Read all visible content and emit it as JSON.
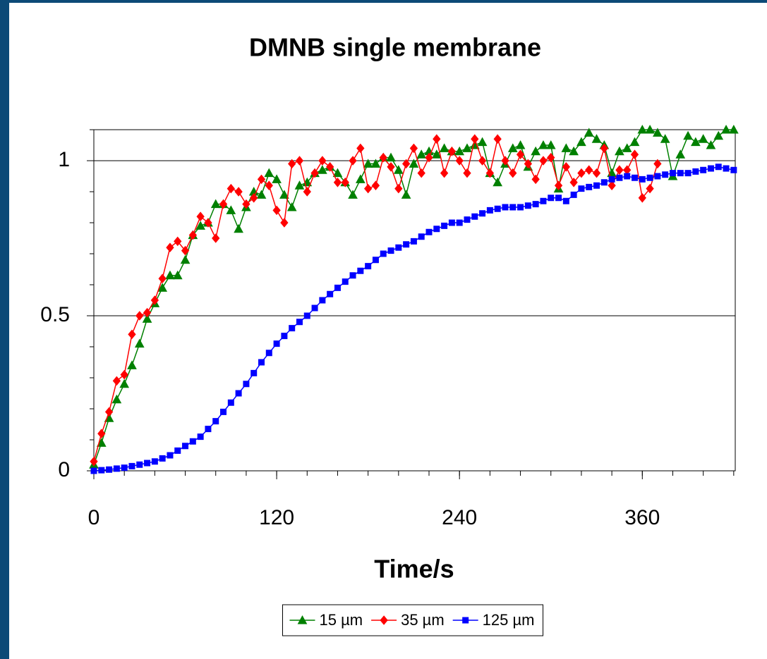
{
  "chart_data": {
    "type": "line",
    "title": "DMNB single membrane",
    "xlabel": "Time/s",
    "x": [
      0,
      5,
      10,
      15,
      20,
      25,
      30,
      35,
      40,
      45,
      50,
      55,
      60,
      65,
      70,
      75,
      80,
      85,
      90,
      95,
      100,
      105,
      110,
      115,
      120,
      125,
      130,
      135,
      140,
      145,
      150,
      155,
      160,
      165,
      170,
      175,
      180,
      185,
      190,
      195,
      200,
      205,
      210,
      215,
      220,
      225,
      230,
      235,
      240,
      245,
      250,
      255,
      260,
      265,
      270,
      275,
      280,
      285,
      290,
      295,
      300,
      305,
      310,
      315,
      320,
      325,
      330,
      335,
      340,
      345,
      350,
      355,
      360,
      365,
      370,
      375,
      380,
      385,
      390,
      395,
      400,
      405,
      410,
      415,
      420
    ],
    "series": [
      {
        "name": "15 µm",
        "color": "#008000",
        "marker": "triangle",
        "values": [
          0.02,
          0.09,
          0.17,
          0.23,
          0.28,
          0.34,
          0.41,
          0.49,
          0.54,
          0.59,
          0.63,
          0.63,
          0.68,
          0.76,
          0.79,
          0.8,
          0.86,
          0.86,
          0.84,
          0.78,
          0.85,
          0.9,
          0.89,
          0.96,
          0.94,
          0.89,
          0.85,
          0.92,
          0.93,
          0.96,
          0.97,
          0.98,
          0.96,
          0.93,
          0.89,
          0.94,
          0.99,
          0.99,
          1.01,
          1.01,
          0.97,
          0.89,
          0.99,
          1.02,
          1.03,
          1.02,
          1.04,
          1.03,
          1.03,
          1.04,
          1.05,
          1.06,
          0.96,
          0.93,
          0.99,
          1.04,
          1.05,
          0.98,
          1.03,
          1.05,
          1.05,
          0.91,
          1.04,
          1.03,
          1.06,
          1.09,
          1.07,
          1.05,
          0.96,
          1.03,
          1.04,
          1.06,
          1.1,
          1.1,
          1.09,
          1.07,
          0.95,
          1.02,
          1.08,
          1.06,
          1.07,
          1.05,
          1.08,
          1.1,
          1.1
        ]
      },
      {
        "name": "35 µm",
        "color": "#ff0000",
        "marker": "diamond",
        "values": [
          0.03,
          0.12,
          0.19,
          0.29,
          0.31,
          0.44,
          0.5,
          0.51,
          0.55,
          0.62,
          0.72,
          0.74,
          0.71,
          0.76,
          0.82,
          0.8,
          0.75,
          0.86,
          0.91,
          0.9,
          0.86,
          0.88,
          0.94,
          0.92,
          0.84,
          0.8,
          0.99,
          1.0,
          0.9,
          0.96,
          1.0,
          0.98,
          0.93,
          0.93,
          1.0,
          1.04,
          0.91,
          0.92,
          1.01,
          0.98,
          0.91,
          0.99,
          1.04,
          0.96,
          1.01,
          1.07,
          0.96,
          1.03,
          1.0,
          0.96,
          1.07,
          1.0,
          0.96,
          1.07,
          1.0,
          0.96,
          1.02,
          0.99,
          0.94,
          1.0,
          1.01,
          0.92,
          0.98,
          0.93,
          0.96,
          0.97,
          0.96,
          1.04,
          0.92,
          0.97,
          0.97,
          1.02,
          0.88,
          0.91,
          0.99,
          null,
          null,
          null,
          null,
          null,
          null,
          null,
          null,
          null,
          null
        ]
      },
      {
        "name": "125 µm",
        "color": "#0000ff",
        "marker": "square",
        "values": [
          0,
          0.002,
          0.004,
          0.007,
          0.01,
          0.015,
          0.02,
          0.025,
          0.03,
          0.04,
          0.05,
          0.065,
          0.08,
          0.095,
          0.11,
          0.135,
          0.16,
          0.19,
          0.22,
          0.25,
          0.28,
          0.315,
          0.35,
          0.38,
          0.41,
          0.435,
          0.46,
          0.48,
          0.5,
          0.525,
          0.55,
          0.57,
          0.59,
          0.61,
          0.63,
          0.645,
          0.66,
          0.68,
          0.7,
          0.71,
          0.72,
          0.73,
          0.74,
          0.755,
          0.77,
          0.78,
          0.79,
          0.8,
          0.8,
          0.81,
          0.82,
          0.83,
          0.84,
          0.845,
          0.85,
          0.85,
          0.85,
          0.855,
          0.86,
          0.87,
          0.88,
          0.88,
          0.87,
          0.89,
          0.91,
          0.915,
          0.92,
          0.93,
          0.94,
          0.945,
          0.95,
          0.945,
          0.94,
          0.945,
          0.95,
          0.955,
          0.96,
          0.96,
          0.96,
          0.965,
          0.97,
          0.975,
          0.98,
          0.975,
          0.97
        ]
      }
    ],
    "xlim": [
      0,
      421
    ],
    "xticks": [
      0,
      120,
      240,
      360
    ],
    "minor_xtick_step": 20,
    "ylim": [
      0,
      1.1
    ],
    "yticks": [
      0,
      0.5,
      1
    ],
    "minor_ytick_step": 0.1,
    "grid": true,
    "legend": "bottom"
  }
}
